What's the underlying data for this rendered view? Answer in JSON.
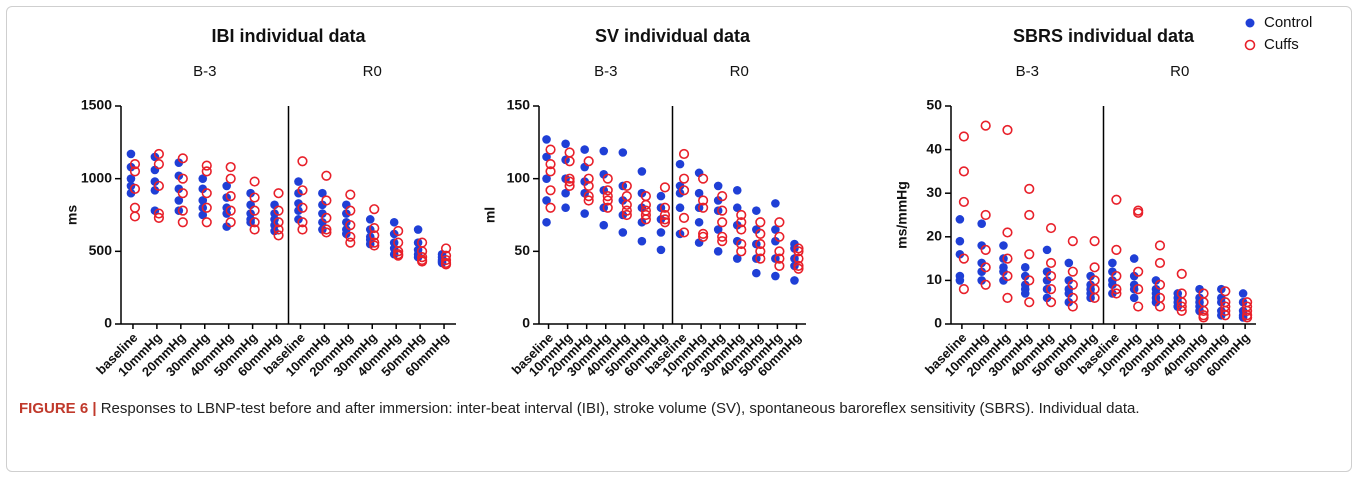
{
  "chart_data": [
    {
      "type": "scatter",
      "title": "IBI individual data",
      "ylabel": "ms",
      "groups": [
        "B-3",
        "R0"
      ],
      "categories": [
        "baseline",
        "10mmHg",
        "20mmHg",
        "30mmHg",
        "40mmHg",
        "50mmHg",
        "60mmHg",
        "baseline",
        "10mmHg",
        "20mmHg",
        "30mmHg",
        "40mmHg",
        "50mmHg",
        "60mmHg"
      ],
      "ylim": [
        0,
        1500
      ],
      "yticks": [
        0,
        500,
        1000,
        1500
      ],
      "series": [
        {
          "color": "#1f3fd6",
          "marker": "filled",
          "values": [
            [
              1170,
              1080,
              1000,
              950,
              900
            ],
            [
              1150,
              1060,
              980,
              920,
              780
            ],
            [
              1110,
              1020,
              930,
              850,
              780
            ],
            [
              1000,
              930,
              850,
              800,
              750
            ],
            [
              950,
              870,
              800,
              760,
              670
            ],
            [
              900,
              820,
              760,
              720,
              700
            ],
            [
              820,
              760,
              720,
              680,
              640
            ],
            [
              980,
              900,
              830,
              780,
              720
            ],
            [
              900,
              820,
              760,
              700,
              650
            ],
            [
              820,
              760,
              700,
              650,
              620
            ],
            [
              720,
              650,
              600,
              580,
              550
            ],
            [
              700,
              620,
              560,
              520,
              480
            ],
            [
              650,
              560,
              510,
              480,
              460
            ],
            [
              480,
              460,
              440,
              430,
              420
            ]
          ]
        },
        {
          "color": "#e8202a",
          "marker": "open",
          "values": [
            [
              1100,
              1050,
              930,
              800,
              740
            ],
            [
              1170,
              1100,
              950,
              760,
              730
            ],
            [
              1140,
              1000,
              900,
              780,
              700
            ],
            [
              1090,
              1050,
              900,
              800,
              700
            ],
            [
              1080,
              1000,
              880,
              780,
              700
            ],
            [
              980,
              870,
              780,
              700,
              650
            ],
            [
              900,
              780,
              700,
              650,
              610
            ],
            [
              1120,
              920,
              800,
              700,
              650
            ],
            [
              1020,
              850,
              730,
              650,
              630
            ],
            [
              890,
              780,
              680,
              600,
              560
            ],
            [
              790,
              660,
              610,
              560,
              540
            ],
            [
              640,
              560,
              500,
              470,
              480
            ],
            [
              560,
              500,
              460,
              440,
              430
            ],
            [
              520,
              470,
              440,
              420,
              410
            ]
          ]
        }
      ]
    },
    {
      "type": "scatter",
      "title": "SV individual data",
      "ylabel": "ml",
      "groups": [
        "B-3",
        "R0"
      ],
      "categories": [
        "baseline",
        "10mmHg",
        "20mmHg",
        "30mmHg",
        "40mmHg",
        "50mmHg",
        "60mmHg",
        "baseline",
        "10mmHg",
        "20mmHg",
        "30mmHg",
        "40mmHg",
        "50mmHg",
        "60mmHg"
      ],
      "ylim": [
        0,
        150
      ],
      "yticks": [
        0,
        50,
        100,
        150
      ],
      "series": [
        {
          "color": "#1f3fd6",
          "marker": "filled",
          "values": [
            [
              127,
              115,
              100,
              85,
              70
            ],
            [
              124,
              113,
              100,
              90,
              80
            ],
            [
              120,
              108,
              98,
              90,
              76
            ],
            [
              119,
              103,
              92,
              80,
              68
            ],
            [
              118,
              95,
              85,
              75,
              63
            ],
            [
              105,
              90,
              80,
              70,
              57
            ],
            [
              88,
              80,
              72,
              63,
              51
            ],
            [
              110,
              95,
              90,
              80,
              62
            ],
            [
              104,
              90,
              80,
              70,
              56
            ],
            [
              95,
              85,
              78,
              65,
              50
            ],
            [
              92,
              80,
              68,
              57,
              45
            ],
            [
              78,
              65,
              55,
              45,
              35
            ],
            [
              83,
              65,
              57,
              45,
              33
            ],
            [
              55,
              52,
              45,
              40,
              30
            ]
          ]
        },
        {
          "color": "#e8202a",
          "marker": "open",
          "values": [
            [
              120,
              110,
              105,
              92,
              80
            ],
            [
              118,
              112,
              100,
              95,
              98
            ],
            [
              112,
              100,
              95,
              88,
              85
            ],
            [
              100,
              92,
              88,
              85,
              80
            ],
            [
              95,
              88,
              82,
              78,
              75
            ],
            [
              88,
              82,
              78,
              75,
              72
            ],
            [
              94,
              80,
              75,
              72,
              70
            ],
            [
              117,
              100,
              92,
              73,
              63
            ],
            [
              100,
              85,
              80,
              62,
              60
            ],
            [
              88,
              78,
              70,
              60,
              57
            ],
            [
              75,
              70,
              65,
              55,
              50
            ],
            [
              70,
              62,
              55,
              50,
              45
            ],
            [
              70,
              60,
              50,
              45,
              40
            ],
            [
              52,
              50,
              45,
              40,
              38
            ]
          ]
        }
      ]
    },
    {
      "type": "scatter",
      "title": "SBRS individual data",
      "ylabel": "ms/mmHg",
      "groups": [
        "B-3",
        "R0"
      ],
      "categories": [
        "baseline",
        "10mmHg",
        "20mmHg",
        "30mmHg",
        "40mmHg",
        "50mmHg",
        "60mmHg",
        "baseline",
        "10mmHg",
        "20mmHg",
        "30mmHg",
        "40mmHg",
        "50mmHg",
        "60mmHg"
      ],
      "ylim": [
        0,
        50
      ],
      "yticks": [
        0,
        10,
        20,
        30,
        40,
        50
      ],
      "legend": "top-right",
      "series": [
        {
          "name": "Control",
          "color": "#1f3fd6",
          "marker": "filled",
          "values": [
            [
              24,
              19,
              16,
              11,
              10
            ],
            [
              23,
              18,
              14,
              12,
              10
            ],
            [
              18,
              15,
              13,
              12,
              10
            ],
            [
              13,
              11,
              9,
              8,
              7
            ],
            [
              17,
              12,
              10,
              8,
              6
            ],
            [
              14,
              10,
              8,
              7,
              5
            ],
            [
              11,
              9,
              8,
              7,
              6
            ],
            [
              14,
              12,
              10,
              9,
              7
            ],
            [
              15,
              11,
              9,
              8,
              6
            ],
            [
              10,
              8,
              7,
              6,
              5
            ],
            [
              7,
              6,
              5,
              4,
              4
            ],
            [
              8,
              6,
              5,
              4,
              3
            ],
            [
              8,
              6,
              5,
              3,
              2
            ],
            [
              7,
              5,
              3,
              2,
              1.5
            ]
          ]
        },
        {
          "name": "Cuffs",
          "color": "#e8202a",
          "marker": "open",
          "values": [
            [
              43,
              35,
              28,
              15,
              8
            ],
            [
              45.5,
              25,
              17,
              13,
              9
            ],
            [
              44.5,
              21,
              15,
              11,
              6
            ],
            [
              31,
              25,
              16,
              10,
              5
            ],
            [
              22,
              14,
              11,
              8,
              5
            ],
            [
              19,
              12,
              9,
              6,
              4
            ],
            [
              19,
              13,
              10,
              8,
              6
            ],
            [
              28.5,
              17,
              11,
              8,
              7
            ],
            [
              26,
              25.5,
              12,
              8,
              4
            ],
            [
              18,
              14,
              9,
              6,
              4
            ],
            [
              11.5,
              7,
              5,
              4,
              3
            ],
            [
              7,
              5,
              3,
              2,
              1.5
            ],
            [
              7.5,
              5,
              4,
              3,
              2
            ],
            [
              5,
              4,
              3,
              2,
              1.5
            ]
          ]
        }
      ]
    }
  ],
  "caption": {
    "label": "FIGURE 6 |",
    "text": "Responses to LBNP-test before and after immersion: inter-beat interval (IBI), stroke volume (SV), spontaneous baroreflex sensitivity (SBRS). Individual data."
  }
}
